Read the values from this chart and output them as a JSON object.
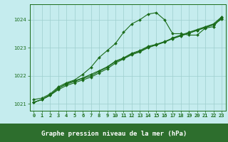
{
  "title": "Graphe pression niveau de la mer (hPa)",
  "xlabel_hours": [
    0,
    1,
    2,
    3,
    4,
    5,
    6,
    7,
    8,
    9,
    10,
    11,
    12,
    13,
    14,
    15,
    16,
    17,
    18,
    19,
    20,
    21,
    22,
    23
  ],
  "series": [
    {
      "name": "s1_steep",
      "values": [
        1021.15,
        1021.2,
        1021.35,
        1021.6,
        1021.75,
        1021.85,
        1022.05,
        1022.3,
        1022.65,
        1022.9,
        1023.15,
        1023.55,
        1023.85,
        1024.0,
        1024.2,
        1024.25,
        1024.0,
        1023.5,
        1023.5,
        1023.45,
        1023.45,
        1023.7,
        1023.75,
        1024.1
      ]
    },
    {
      "name": "s2_linear",
      "values": [
        1021.05,
        1021.15,
        1021.3,
        1021.5,
        1021.65,
        1021.75,
        1021.85,
        1021.95,
        1022.1,
        1022.25,
        1022.45,
        1022.6,
        1022.75,
        1022.85,
        1023.0,
        1023.1,
        1023.2,
        1023.35,
        1023.45,
        1023.55,
        1023.65,
        1023.75,
        1023.85,
        1024.1
      ]
    },
    {
      "name": "s3_linear",
      "values": [
        1021.05,
        1021.15,
        1021.3,
        1021.55,
        1021.7,
        1021.8,
        1021.9,
        1022.0,
        1022.15,
        1022.3,
        1022.5,
        1022.62,
        1022.78,
        1022.88,
        1023.02,
        1023.1,
        1023.2,
        1023.32,
        1023.42,
        1023.52,
        1023.62,
        1023.72,
        1023.82,
        1024.05
      ]
    },
    {
      "name": "s4_linear",
      "values": [
        1021.05,
        1021.15,
        1021.32,
        1021.55,
        1021.72,
        1021.82,
        1021.92,
        1022.05,
        1022.18,
        1022.32,
        1022.52,
        1022.64,
        1022.8,
        1022.9,
        1023.05,
        1023.12,
        1023.22,
        1023.33,
        1023.43,
        1023.52,
        1023.62,
        1023.72,
        1023.82,
        1024.02
      ]
    }
  ],
  "ylim": [
    1020.75,
    1024.55
  ],
  "yticks": [
    1021,
    1022,
    1023,
    1024
  ],
  "line_color": "#1a6b1a",
  "marker": "D",
  "marker_size": 2.0,
  "line_width": 0.8,
  "bg_color": "#c5ecee",
  "grid_color": "#9ecece",
  "label_bg_color": "#2d6e2d",
  "label_text_color": "#ffffff",
  "axis_tick_color": "#1a6b1a",
  "title_fontsize": 6.5,
  "tick_fontsize": 5.0
}
